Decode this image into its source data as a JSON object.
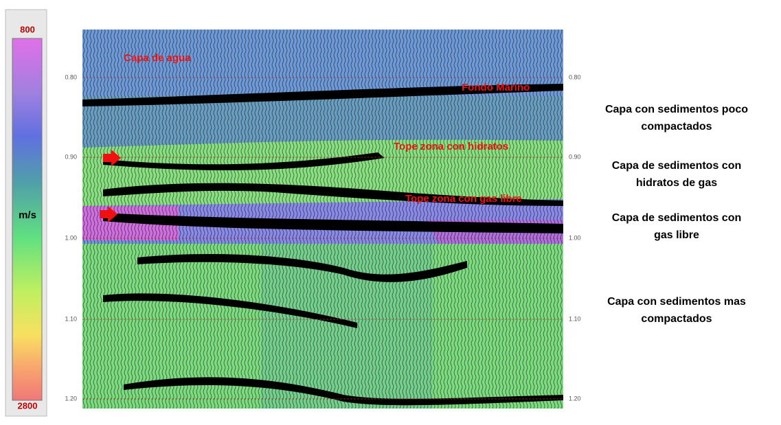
{
  "colorbar": {
    "top_label": "800",
    "bottom_label": "2800",
    "unit": "m/s"
  },
  "section": {
    "left_ticks": [
      "0.80",
      "0.90",
      "1.00",
      "1.10",
      "1.20"
    ],
    "right_ticks": [
      "0.80",
      "0.90",
      "1.00",
      "1.10",
      "1.20"
    ]
  },
  "annotations": [
    "Capa de agua",
    "Fondo Marino",
    "Tope zona con hidratos",
    "Tope zona con gas libre"
  ],
  "layers": [
    {
      "lines": [
        "Capa con sedimentos poco",
        "compactados"
      ]
    },
    {
      "lines": [
        "Capa de sedimentos con",
        "hidratos de gas"
      ]
    },
    {
      "lines": [
        "Capa de sedimentos con",
        "gas libre"
      ]
    },
    {
      "lines": [
        "Capa con sedimentos mas",
        "compactados"
      ]
    }
  ]
}
